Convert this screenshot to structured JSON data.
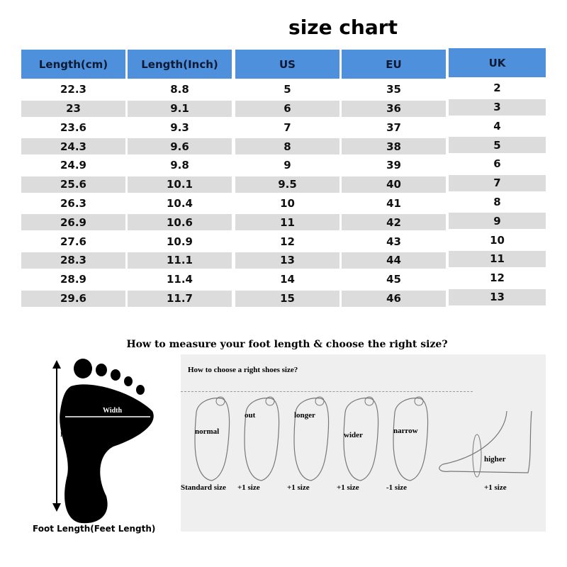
{
  "title": "size chart",
  "table": {
    "headers": [
      "Length(cm)",
      "Length(Inch)",
      "US",
      "EU",
      "UK"
    ],
    "columns": [
      [
        "22.3",
        "23",
        "23.6",
        "24.3",
        "24.9",
        "25.6",
        "26.3",
        "26.9",
        "27.6",
        "28.3",
        "28.9",
        "29.6"
      ],
      [
        "8.8",
        "9.1",
        "9.3",
        "9.6",
        "9.8",
        "10.1",
        "10.4",
        "10.6",
        "10.9",
        "11.1",
        "11.4",
        "11.7"
      ],
      [
        "5",
        "6",
        "7",
        "8",
        "9",
        "9.5",
        "10",
        "11",
        "12",
        "13",
        "14",
        "15"
      ],
      [
        "35",
        "36",
        "37",
        "38",
        "39",
        "40",
        "41",
        "42",
        "43",
        "44",
        "45",
        "46"
      ],
      [
        "2",
        "3",
        "4",
        "5",
        "6",
        "7",
        "8",
        "9",
        "10",
        "11",
        "12",
        "13"
      ]
    ]
  },
  "colors": {
    "header": "#4f90dd",
    "stripe": "#dcdcdc"
  },
  "measure": {
    "heading": "How to measure your foot length & choose the right size?",
    "width_label": "Width",
    "length_label": "Length",
    "foot_caption": "Foot Length(Feet Length)",
    "panel_heading": "How to choose a right shoes size?",
    "feet": [
      {
        "label": "normal",
        "size": "Standard size"
      },
      {
        "label": "out",
        "size": "+1 size"
      },
      {
        "label": "longer",
        "size": "+1 size"
      },
      {
        "label": "wider",
        "size": "+1 size"
      },
      {
        "label": "narrow",
        "size": "-1 size"
      },
      {
        "label": "higher",
        "size": "+1 size"
      }
    ]
  }
}
